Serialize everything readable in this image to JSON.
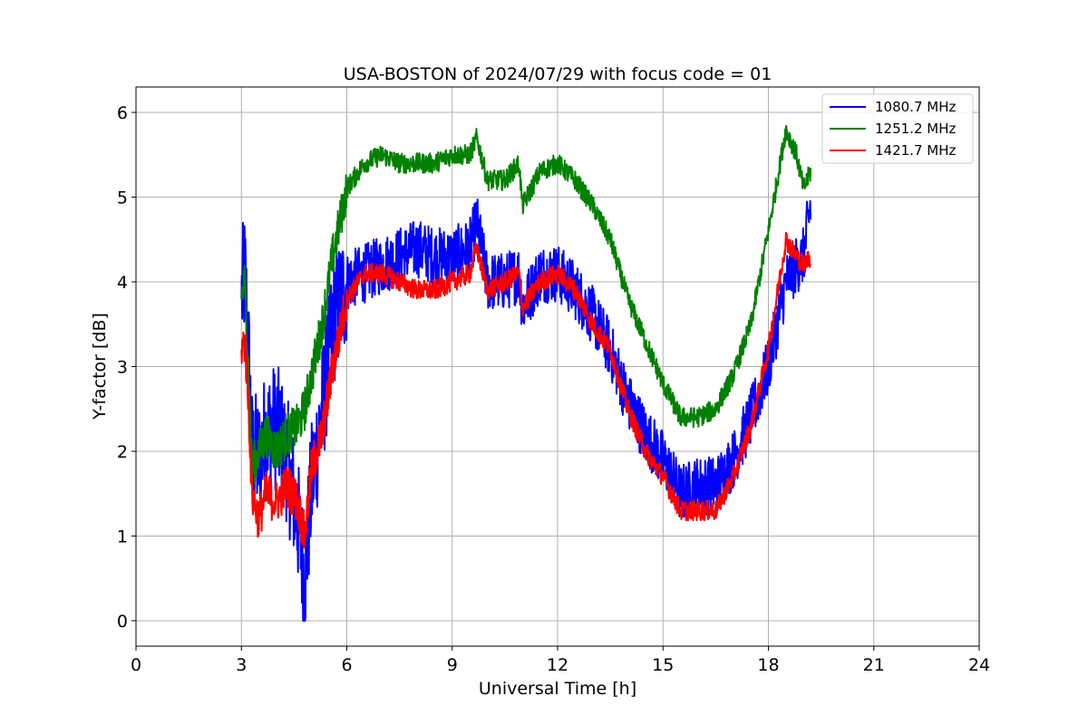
{
  "chart_data": {
    "type": "line",
    "title": "USA-BOSTON of 2024/07/29 with focus code = 01",
    "xlabel": "Universal Time [h]",
    "ylabel": "Y-factor [dB]",
    "xlim": [
      0,
      24
    ],
    "ylim": [
      -0.3,
      6.3
    ],
    "xticks": [
      0,
      3,
      6,
      9,
      12,
      15,
      18,
      21,
      24
    ],
    "yticks": [
      0,
      1,
      2,
      3,
      4,
      5,
      6
    ],
    "xtick_labels": [
      "0",
      "3",
      "6",
      "9",
      "12",
      "15",
      "18",
      "21",
      "24"
    ],
    "ytick_labels": [
      "0",
      "1",
      "2",
      "3",
      "4",
      "5",
      "6"
    ],
    "grid": true,
    "legend_position": "top-right",
    "series": [
      {
        "name": "1080.7 MHz",
        "color": "#0000ff",
        "x": [
          3.0,
          3.1,
          3.2,
          3.3,
          3.5,
          3.7,
          4.0,
          4.3,
          4.6,
          4.8,
          5.0,
          5.3,
          5.6,
          6.0,
          6.5,
          7.0,
          7.5,
          8.0,
          8.5,
          9.0,
          9.5,
          9.7,
          10.0,
          10.5,
          10.9,
          11.0,
          11.5,
          12.0,
          12.5,
          13.0,
          13.5,
          14.0,
          14.5,
          15.0,
          15.5,
          16.0,
          16.5,
          17.0,
          17.5,
          18.0,
          18.5,
          18.8,
          19.0,
          19.2
        ],
        "y": [
          3.8,
          4.1,
          3.2,
          2.0,
          1.9,
          2.2,
          2.3,
          1.9,
          1.2,
          0.5,
          1.6,
          2.5,
          3.5,
          4.0,
          4.1,
          4.2,
          4.3,
          4.4,
          4.3,
          4.3,
          4.4,
          4.7,
          4.0,
          4.0,
          4.1,
          3.7,
          4.1,
          4.1,
          3.9,
          3.6,
          3.2,
          2.6,
          2.2,
          1.9,
          1.5,
          1.6,
          1.6,
          1.9,
          2.4,
          3.0,
          4.0,
          4.2,
          4.3,
          4.9
        ]
      },
      {
        "name": "1251.2 MHz",
        "color": "#008000",
        "x": [
          3.0,
          3.1,
          3.2,
          3.3,
          3.5,
          3.7,
          4.0,
          4.3,
          4.6,
          4.8,
          5.0,
          5.3,
          5.6,
          6.0,
          6.5,
          7.0,
          7.5,
          8.0,
          8.5,
          9.0,
          9.5,
          9.7,
          10.0,
          10.5,
          10.9,
          11.0,
          11.5,
          12.0,
          12.5,
          13.0,
          13.5,
          14.0,
          14.5,
          15.0,
          15.5,
          16.0,
          16.5,
          17.0,
          17.5,
          18.0,
          18.5,
          18.8,
          19.0,
          19.2
        ],
        "y": [
          3.8,
          4.0,
          3.0,
          1.8,
          2.0,
          2.2,
          2.0,
          2.2,
          2.3,
          2.5,
          2.9,
          3.5,
          4.3,
          5.1,
          5.4,
          5.5,
          5.4,
          5.4,
          5.4,
          5.5,
          5.5,
          5.7,
          5.2,
          5.2,
          5.4,
          4.9,
          5.3,
          5.4,
          5.2,
          4.9,
          4.5,
          3.8,
          3.3,
          2.8,
          2.4,
          2.4,
          2.5,
          2.9,
          3.5,
          4.6,
          5.8,
          5.5,
          5.1,
          5.3
        ]
      },
      {
        "name": "1421.7 MHz",
        "color": "#ff0000",
        "x": [
          3.0,
          3.1,
          3.2,
          3.3,
          3.5,
          3.7,
          4.0,
          4.3,
          4.6,
          4.8,
          5.0,
          5.3,
          5.6,
          6.0,
          6.5,
          7.0,
          7.5,
          8.0,
          8.5,
          9.0,
          9.5,
          9.7,
          10.0,
          10.5,
          10.9,
          11.0,
          11.5,
          12.0,
          12.5,
          13.0,
          13.5,
          14.0,
          14.5,
          15.0,
          15.5,
          16.0,
          16.5,
          17.0,
          17.5,
          18.0,
          18.5,
          18.8,
          19.0,
          19.2
        ],
        "y": [
          3.2,
          3.3,
          2.6,
          1.5,
          1.2,
          1.5,
          1.4,
          1.6,
          1.4,
          1.0,
          1.8,
          2.2,
          3.0,
          3.8,
          4.1,
          4.1,
          4.0,
          3.9,
          3.9,
          4.0,
          4.1,
          4.4,
          3.9,
          4.0,
          4.1,
          3.7,
          4.0,
          4.1,
          3.9,
          3.5,
          3.2,
          2.5,
          2.0,
          1.7,
          1.3,
          1.3,
          1.3,
          1.7,
          2.3,
          3.2,
          4.5,
          4.3,
          4.2,
          4.3
        ]
      }
    ]
  }
}
